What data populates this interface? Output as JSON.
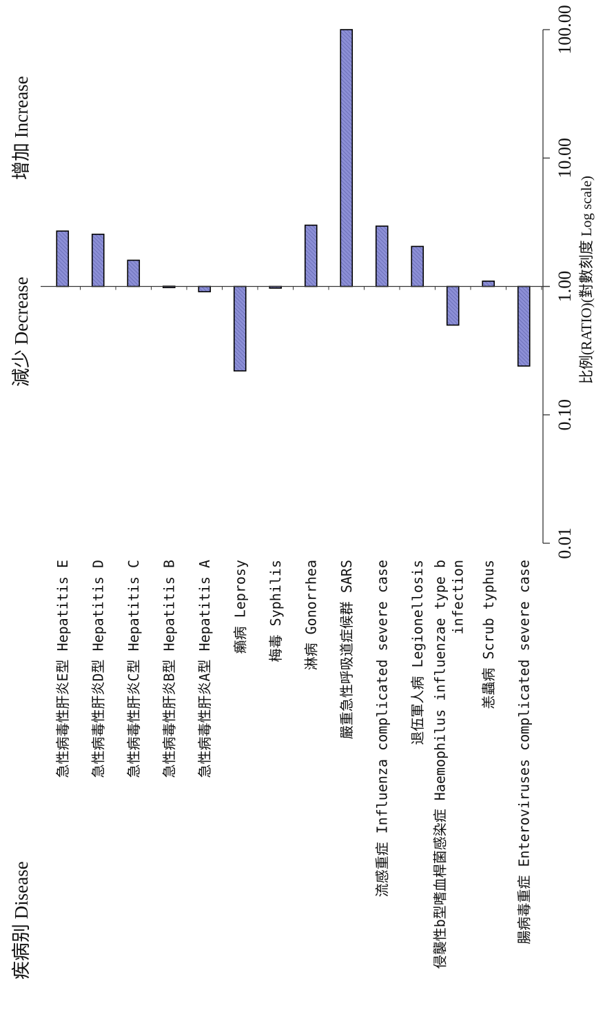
{
  "chart_data": {
    "type": "bar",
    "orientation": "horizontal",
    "scale": "log",
    "baseline": 1.0,
    "xlim": [
      0.01,
      100
    ],
    "x_ticks": [
      "0.01",
      "0.10",
      "1.00",
      "10.00",
      "100.00"
    ],
    "x_tick_values": [
      0.01,
      0.1,
      1,
      10,
      100
    ],
    "xlabel": "比例(RATIO)(對數刻度 Log scale)",
    "category_header": "疾病别 Disease",
    "decrease_label": "減少 Decrease",
    "increase_label": "增加 Increase",
    "bar_color": "#8c8fd6",
    "categories": [
      [
        "急性病毒性肝炎E型 Hepatitis E"
      ],
      [
        "急性病毒性肝炎D型 Hepatitis D"
      ],
      [
        "急性病毒性肝炎C型 Hepatitis C"
      ],
      [
        "急性病毒性肝炎B型 Hepatitis B"
      ],
      [
        "急性病毒性肝炎A型 Hepatitis A"
      ],
      [
        "癩病 Leprosy"
      ],
      [
        "梅毒 Syphilis"
      ],
      [
        "淋病 Gonorrhea"
      ],
      [
        "嚴重急性呼吸道症候群 SARS"
      ],
      [
        "流感重症 Influenza complicated severe case"
      ],
      [
        "退伍軍人病 Legionellosis"
      ],
      [
        "侵襲性b型嗜血桿菌感染症 Haemophilus influenzae type b",
        "infection"
      ],
      [
        "恙蟲病 Scrub typhus"
      ],
      [
        "腸病毒重症 Enteroviruses complicated severe case"
      ]
    ],
    "values": [
      2.7,
      2.55,
      1.6,
      0.98,
      0.91,
      0.22,
      0.97,
      3.0,
      100,
      2.95,
      2.05,
      0.5,
      1.1,
      0.24
    ]
  }
}
